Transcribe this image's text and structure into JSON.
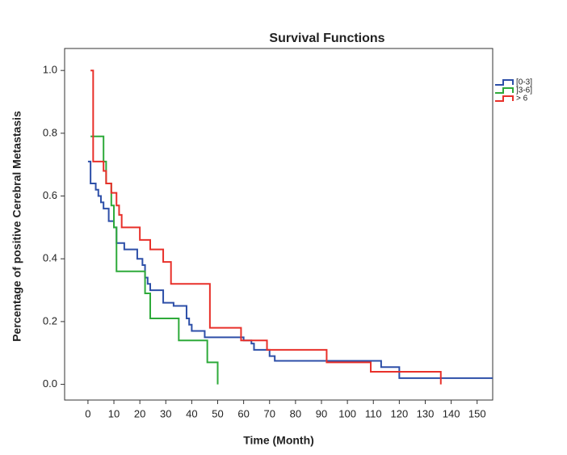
{
  "chart_data": {
    "type": "line",
    "step": "post",
    "title": "Survival Functions",
    "x_label": "Time (Month)",
    "y_label": "Percentage of positive Cerebral Metastasis",
    "xlim": [
      -9,
      156
    ],
    "ylim": [
      -0.05,
      1.07
    ],
    "xticks": [
      0,
      10,
      20,
      30,
      40,
      50,
      60,
      70,
      80,
      90,
      100,
      110,
      120,
      130,
      140,
      150
    ],
    "yticks": [
      {
        "value": 0,
        "label": "0.0"
      },
      {
        "value": 0.2,
        "label": "0.2"
      },
      {
        "value": 0.4,
        "label": "0.4"
      },
      {
        "value": 0.6,
        "label": "0.6"
      },
      {
        "value": 0.8,
        "label": "0.8"
      },
      {
        "value": 1,
        "label": "1.0"
      }
    ],
    "legend": "right",
    "series": [
      {
        "name": "[0-3]",
        "color": "#2d4fa8",
        "x": [
          0,
          1,
          3,
          4,
          5,
          6,
          8,
          10,
          11,
          14,
          19,
          21,
          22,
          23,
          24,
          29,
          33,
          38,
          39,
          40,
          45,
          60,
          63,
          64,
          70,
          72,
          110,
          113,
          120,
          156
        ],
        "values": [
          0.71,
          0.64,
          0.62,
          0.6,
          0.58,
          0.56,
          0.52,
          0.5,
          0.45,
          0.43,
          0.4,
          0.38,
          0.34,
          0.32,
          0.3,
          0.26,
          0.25,
          0.21,
          0.19,
          0.17,
          0.15,
          0.14,
          0.13,
          0.11,
          0.09,
          0.075,
          0.075,
          0.055,
          0.02,
          0.02
        ]
      },
      {
        "name": "]3-6]",
        "color": "#2eaa3a",
        "x": [
          1,
          6,
          7,
          9,
          10,
          11,
          22,
          24,
          35,
          46,
          50
        ],
        "values": [
          0.79,
          0.71,
          0.64,
          0.57,
          0.5,
          0.36,
          0.29,
          0.21,
          0.14,
          0.07,
          0
        ]
      },
      {
        "name": "> 6",
        "color": "#e8302a",
        "x": [
          1,
          2,
          6,
          7,
          9,
          11,
          12,
          13,
          20,
          24,
          29,
          32,
          47,
          59,
          69,
          92,
          109,
          136
        ],
        "values": [
          1,
          0.71,
          0.68,
          0.64,
          0.61,
          0.57,
          0.54,
          0.5,
          0.46,
          0.43,
          0.39,
          0.32,
          0.18,
          0.14,
          0.11,
          0.07,
          0.04,
          0
        ]
      }
    ]
  }
}
